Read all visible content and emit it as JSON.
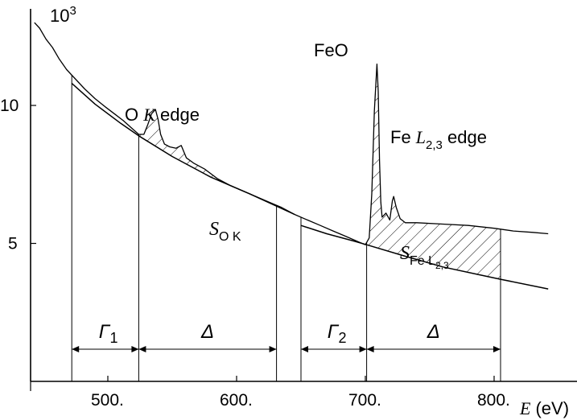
{
  "chart_data": {
    "type": "line",
    "title": "FeO",
    "xlabel_var": "E",
    "xlabel_unit": "(eV)",
    "y_multiplier": "10",
    "y_multiplier_exp": "3",
    "xlim": [
      440,
      845
    ],
    "ylim": [
      0,
      13.5
    ],
    "x_ticks": [
      {
        "value": 500,
        "label": "500."
      },
      {
        "value": 600,
        "label": "600."
      },
      {
        "value": 700,
        "label": "700."
      },
      {
        "value": 800,
        "label": "800."
      }
    ],
    "y_ticks": [
      {
        "value": 5,
        "label": "5"
      },
      {
        "value": 10,
        "label": "10"
      }
    ],
    "grid": false,
    "series": [
      {
        "role": "spectrum",
        "points": [
          [
            443,
            13.0
          ],
          [
            447,
            12.8
          ],
          [
            452,
            12.4
          ],
          [
            457,
            12.1
          ],
          [
            462,
            11.7
          ],
          [
            468,
            11.3
          ],
          [
            475,
            10.95
          ],
          [
            482,
            10.6
          ],
          [
            490,
            10.25
          ],
          [
            498,
            9.95
          ],
          [
            505,
            9.7
          ],
          [
            512,
            9.45
          ],
          [
            518,
            9.2
          ],
          [
            524,
            8.95
          ],
          [
            528,
            8.95
          ],
          [
            531,
            9.3
          ],
          [
            534,
            9.7
          ],
          [
            537,
            9.85
          ],
          [
            539,
            9.5
          ],
          [
            541,
            8.95
          ],
          [
            544,
            8.6
          ],
          [
            548,
            8.5
          ],
          [
            553,
            8.45
          ],
          [
            557,
            8.55
          ],
          [
            561,
            8.1
          ],
          [
            567,
            7.9
          ],
          [
            575,
            7.7
          ],
          [
            585,
            7.35
          ],
          [
            595,
            7.1
          ],
          [
            605,
            6.9
          ],
          [
            615,
            6.7
          ],
          [
            625,
            6.5
          ],
          [
            635,
            6.3
          ],
          [
            645,
            6.05
          ],
          [
            655,
            5.85
          ],
          [
            665,
            5.65
          ],
          [
            675,
            5.45
          ],
          [
            685,
            5.25
          ],
          [
            695,
            5.05
          ],
          [
            700,
            4.95
          ],
          [
            703,
            5.2
          ],
          [
            705,
            6.8
          ],
          [
            707,
            9.8
          ],
          [
            709,
            11.5
          ],
          [
            710,
            10.5
          ],
          [
            711,
            8.0
          ],
          [
            712,
            6.5
          ],
          [
            713,
            5.95
          ],
          [
            716,
            6.1
          ],
          [
            719,
            5.85
          ],
          [
            721,
            6.55
          ],
          [
            722,
            6.7
          ],
          [
            724,
            6.3
          ],
          [
            727,
            5.9
          ],
          [
            731,
            5.75
          ],
          [
            740,
            5.75
          ],
          [
            760,
            5.7
          ],
          [
            780,
            5.65
          ],
          [
            800,
            5.55
          ],
          [
            815,
            5.45
          ],
          [
            830,
            5.4
          ],
          [
            842,
            5.35
          ]
        ]
      },
      {
        "role": "background fit O K",
        "points": [
          [
            472,
            10.8
          ],
          [
            490,
            10.05
          ],
          [
            510,
            9.35
          ],
          [
            524,
            8.9
          ],
          [
            550,
            8.15
          ],
          [
            580,
            7.4
          ],
          [
            610,
            6.8
          ],
          [
            631,
            6.35
          ],
          [
            645,
            6.05
          ]
        ]
      },
      {
        "role": "background fit Fe L2,3",
        "points": [
          [
            650,
            5.65
          ],
          [
            670,
            5.35
          ],
          [
            690,
            5.1
          ],
          [
            701,
            4.95
          ],
          [
            730,
            4.55
          ],
          [
            760,
            4.15
          ],
          [
            790,
            3.85
          ],
          [
            805,
            3.7
          ],
          [
            842,
            3.35
          ]
        ]
      }
    ],
    "shaded_regions": [
      {
        "label": "S_O K",
        "from": 524,
        "to": 631
      },
      {
        "label": "S_Fe L2,3",
        "from": 701,
        "to": 805
      }
    ],
    "windows": [
      {
        "label": "Γ",
        "sub": "1",
        "from": 472,
        "to": 524
      },
      {
        "label": "Δ",
        "sub": "",
        "from": 524,
        "to": 631
      },
      {
        "label": "Γ",
        "sub": "2",
        "from": 650,
        "to": 701
      },
      {
        "label": "Δ",
        "sub": "",
        "from": 701,
        "to": 805
      }
    ],
    "annotations": {
      "o_edge_prefix": "O ",
      "o_edge_var": "K",
      "o_edge_suffix": " edge",
      "fe_edge_prefix": "Fe ",
      "fe_edge_var": "L",
      "fe_edge_sub": "2,3",
      "fe_edge_suffix": " edge",
      "s_var": "S",
      "s_o_sub": "O K",
      "s_fe_sub": "Fe L",
      "s_fe_subsub": "2,3"
    }
  }
}
